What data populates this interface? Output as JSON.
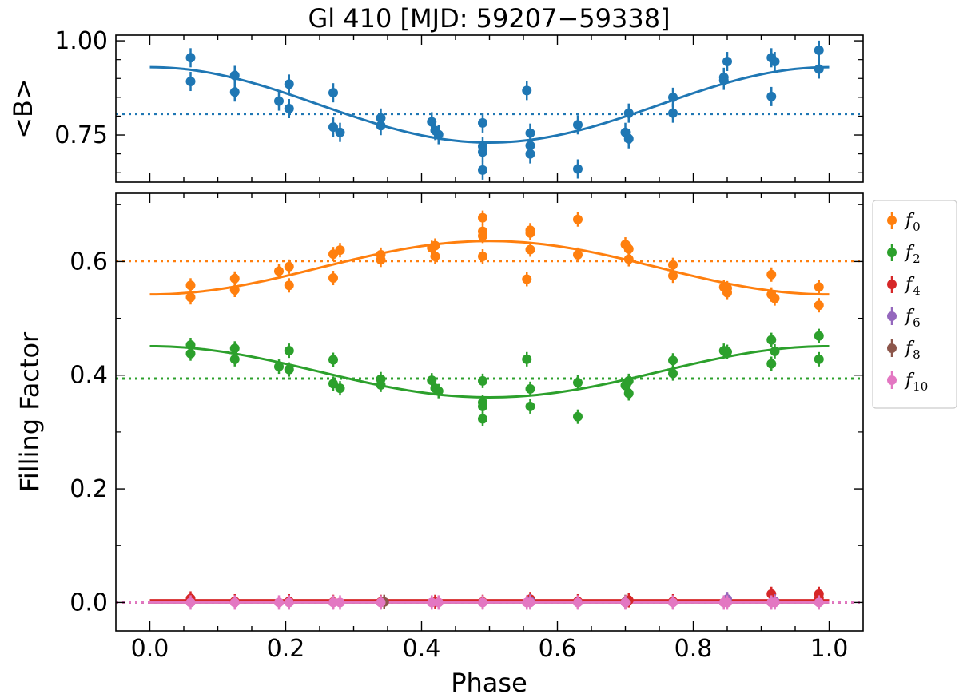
{
  "chart_data": {
    "title": "Gl 410 [MJD: 59207−59338]",
    "xlabel": "Phase",
    "xlim": [
      -0.05,
      1.05
    ],
    "xticks": [
      {
        "v": 0.0,
        "label": "0.0"
      },
      {
        "v": 0.2,
        "label": "0.2"
      },
      {
        "v": 0.4,
        "label": "0.4"
      },
      {
        "v": 0.6,
        "label": "0.6"
      },
      {
        "v": 0.8,
        "label": "0.8"
      },
      {
        "v": 1.0,
        "label": "1.0"
      }
    ],
    "panels": [
      {
        "id": "top",
        "type": "scatter",
        "ylabel": "<B>",
        "ylim": [
          0.625,
          1.015
        ],
        "yticks": [
          {
            "v": 0.75,
            "label": "0.75"
          },
          {
            "v": 1.0,
            "label": "1.00"
          }
        ],
        "yminor": [
          0.65,
          0.7,
          0.8,
          0.85,
          0.9,
          0.95
        ],
        "series": [
          {
            "name": "<B>",
            "color": "#1f77b4",
            "mean": 0.806,
            "fit": {
              "center": 0.83,
              "amplitude": 0.1
            },
            "points": [
              [
                0.06,
                0.955
              ],
              [
                0.06,
                0.892
              ],
              [
                0.125,
                0.908
              ],
              [
                0.125,
                0.864
              ],
              [
                0.19,
                0.84
              ],
              [
                0.205,
                0.82
              ],
              [
                0.205,
                0.885
              ],
              [
                0.27,
                0.862
              ],
              [
                0.27,
                0.771
              ],
              [
                0.28,
                0.757
              ],
              [
                0.34,
                0.795
              ],
              [
                0.34,
                0.775
              ],
              [
                0.415,
                0.785
              ],
              [
                0.42,
                0.762
              ],
              [
                0.425,
                0.751
              ],
              [
                0.49,
                0.782
              ],
              [
                0.49,
                0.72
              ],
              [
                0.49,
                0.705
              ],
              [
                0.49,
                0.657
              ],
              [
                0.555,
                0.868
              ],
              [
                0.56,
                0.755
              ],
              [
                0.56,
                0.722
              ],
              [
                0.56,
                0.7
              ],
              [
                0.63,
                0.66
              ],
              [
                0.63,
                0.777
              ],
              [
                0.7,
                0.757
              ],
              [
                0.705,
                0.74
              ],
              [
                0.705,
                0.808
              ],
              [
                0.77,
                0.85
              ],
              [
                0.77,
                0.808
              ],
              [
                0.845,
                0.895
              ],
              [
                0.845,
                0.903
              ],
              [
                0.85,
                0.945
              ],
              [
                0.915,
                0.955
              ],
              [
                0.915,
                0.852
              ],
              [
                0.92,
                0.945
              ],
              [
                0.985,
                0.975
              ],
              [
                0.985,
                0.925
              ]
            ]
          }
        ]
      },
      {
        "id": "bottom",
        "type": "scatter",
        "ylabel": "Filling Factor",
        "ylim": [
          -0.05,
          0.72
        ],
        "yticks": [
          {
            "v": 0.0,
            "label": "0.0"
          },
          {
            "v": 0.2,
            "label": "0.2"
          },
          {
            "v": 0.4,
            "label": "0.4"
          },
          {
            "v": 0.6,
            "label": "0.6"
          }
        ],
        "yminor": [
          0.1,
          0.3,
          0.5,
          0.7
        ],
        "legend_position": "outside-right",
        "series": [
          {
            "name": "f0",
            "symbol": "f",
            "sub": "0",
            "color": "#ff7f0e",
            "mean": 0.601,
            "fit": {
              "center": 0.589,
              "amplitude": -0.047
            },
            "points": [
              [
                0.06,
                0.558
              ],
              [
                0.06,
                0.537
              ],
              [
                0.125,
                0.57
              ],
              [
                0.125,
                0.55
              ],
              [
                0.19,
                0.583
              ],
              [
                0.205,
                0.591
              ],
              [
                0.205,
                0.558
              ],
              [
                0.27,
                0.613
              ],
              [
                0.27,
                0.571
              ],
              [
                0.28,
                0.62
              ],
              [
                0.34,
                0.612
              ],
              [
                0.34,
                0.603
              ],
              [
                0.415,
                0.624
              ],
              [
                0.42,
                0.628
              ],
              [
                0.42,
                0.609
              ],
              [
                0.49,
                0.677
              ],
              [
                0.49,
                0.653
              ],
              [
                0.49,
                0.645
              ],
              [
                0.49,
                0.609
              ],
              [
                0.555,
                0.569
              ],
              [
                0.56,
                0.655
              ],
              [
                0.56,
                0.65
              ],
              [
                0.56,
                0.621
              ],
              [
                0.63,
                0.674
              ],
              [
                0.63,
                0.612
              ],
              [
                0.7,
                0.63
              ],
              [
                0.705,
                0.622
              ],
              [
                0.705,
                0.604
              ],
              [
                0.77,
                0.594
              ],
              [
                0.77,
                0.575
              ],
              [
                0.845,
                0.555
              ],
              [
                0.85,
                0.553
              ],
              [
                0.85,
                0.545
              ],
              [
                0.915,
                0.577
              ],
              [
                0.915,
                0.542
              ],
              [
                0.92,
                0.535
              ],
              [
                0.985,
                0.555
              ],
              [
                0.985,
                0.523
              ]
            ]
          },
          {
            "name": "f2",
            "symbol": "f",
            "sub": "2",
            "color": "#2ca02c",
            "mean": 0.394,
            "fit": {
              "center": 0.406,
              "amplitude": 0.045
            },
            "points": [
              [
                0.06,
                0.453
              ],
              [
                0.06,
                0.438
              ],
              [
                0.125,
                0.447
              ],
              [
                0.125,
                0.428
              ],
              [
                0.19,
                0.415
              ],
              [
                0.205,
                0.443
              ],
              [
                0.205,
                0.41
              ],
              [
                0.27,
                0.427
              ],
              [
                0.27,
                0.385
              ],
              [
                0.28,
                0.377
              ],
              [
                0.34,
                0.393
              ],
              [
                0.34,
                0.383
              ],
              [
                0.415,
                0.391
              ],
              [
                0.42,
                0.377
              ],
              [
                0.425,
                0.372
              ],
              [
                0.49,
                0.39
              ],
              [
                0.49,
                0.352
              ],
              [
                0.49,
                0.345
              ],
              [
                0.49,
                0.323
              ],
              [
                0.555,
                0.428
              ],
              [
                0.56,
                0.376
              ],
              [
                0.56,
                0.345
              ],
              [
                0.63,
                0.387
              ],
              [
                0.63,
                0.327
              ],
              [
                0.7,
                0.382
              ],
              [
                0.705,
                0.368
              ],
              [
                0.705,
                0.39
              ],
              [
                0.77,
                0.426
              ],
              [
                0.77,
                0.403
              ],
              [
                0.845,
                0.443
              ],
              [
                0.85,
                0.441
              ],
              [
                0.915,
                0.462
              ],
              [
                0.915,
                0.42
              ],
              [
                0.92,
                0.442
              ],
              [
                0.985,
                0.469
              ],
              [
                0.985,
                0.428
              ]
            ]
          },
          {
            "name": "f4",
            "symbol": "f",
            "sub": "4",
            "color": "#d62728",
            "mean": 0.0,
            "fit": {
              "center": 0.004,
              "amplitude": 0.0
            },
            "points": [
              [
                0.06,
                0.007
              ],
              [
                0.125,
                0.002
              ],
              [
                0.205,
                0.002
              ],
              [
                0.27,
                0.001
              ],
              [
                0.34,
                0.001
              ],
              [
                0.42,
                0.001
              ],
              [
                0.49,
                0.001
              ],
              [
                0.56,
                0.006
              ],
              [
                0.63,
                0.002
              ],
              [
                0.705,
                0.004
              ],
              [
                0.77,
                0.002
              ],
              [
                0.85,
                0.004
              ],
              [
                0.915,
                0.015
              ],
              [
                0.985,
                0.015
              ],
              [
                0.985,
                0.008
              ]
            ]
          },
          {
            "name": "f6",
            "symbol": "f",
            "sub": "6",
            "color": "#9467bd",
            "mean": 0.0,
            "fit": {
              "center": 0.001,
              "amplitude": 0.0
            },
            "points": [
              [
                0.85,
                0.006
              ],
              [
                0.92,
                0.002
              ],
              [
                0.56,
                0.002
              ]
            ]
          },
          {
            "name": "f8",
            "symbol": "f",
            "sub": "8",
            "color": "#8c564b",
            "mean": 0.0,
            "fit": {
              "center": 0.0,
              "amplitude": 0.0
            },
            "points": [
              [
                0.345,
                0.001
              ],
              [
                0.7,
                0.001
              ]
            ]
          },
          {
            "name": "f10",
            "symbol": "f",
            "sub": "10",
            "color": "#e377c2",
            "mean": 0.0,
            "fit": {
              "center": 0.0,
              "amplitude": 0.0
            },
            "points": [
              [
                0.06,
                0.0
              ],
              [
                0.125,
                0.0
              ],
              [
                0.19,
                0.0
              ],
              [
                0.205,
                0.0
              ],
              [
                0.27,
                0.0
              ],
              [
                0.28,
                0.0
              ],
              [
                0.34,
                0.0
              ],
              [
                0.415,
                0.0
              ],
              [
                0.425,
                0.0
              ],
              [
                0.49,
                0.0
              ],
              [
                0.555,
                0.0
              ],
              [
                0.56,
                0.0
              ],
              [
                0.63,
                0.0
              ],
              [
                0.7,
                0.0
              ],
              [
                0.77,
                0.0
              ],
              [
                0.845,
                0.0
              ],
              [
                0.85,
                0.0
              ],
              [
                0.915,
                0.0
              ],
              [
                0.92,
                0.0
              ],
              [
                0.985,
                0.0
              ]
            ]
          }
        ]
      }
    ]
  }
}
